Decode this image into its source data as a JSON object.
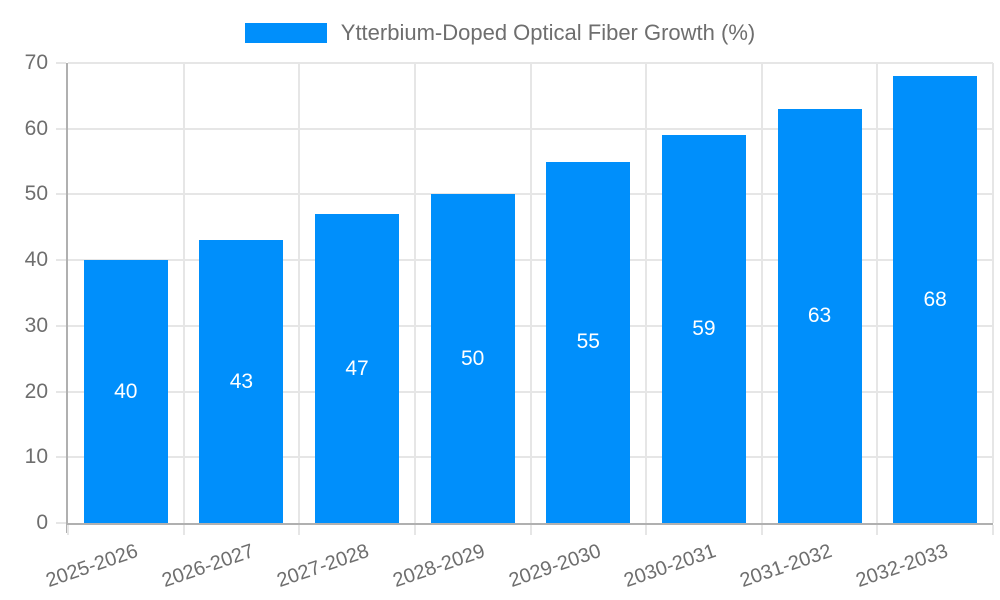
{
  "chart_data": {
    "type": "bar",
    "title": "Ytterbium-Doped Optical Fiber Growth (%)",
    "legend": {
      "position": "top",
      "label": "Ytterbium-Doped Optical Fiber Growth (%)"
    },
    "categories": [
      "2025-2026",
      "2026-2027",
      "2027-2028",
      "2028-2029",
      "2029-2030",
      "2030-2031",
      "2031-2032",
      "2032-2033"
    ],
    "series": [
      {
        "name": "Ytterbium-Doped Optical Fiber Growth (%)",
        "values": [
          40,
          43,
          47,
          50,
          55,
          59,
          63,
          68
        ]
      }
    ],
    "value_labels_shown": true,
    "xlabel": "",
    "ylabel": "",
    "ylim": [
      0,
      70
    ],
    "yticks": [
      0,
      10,
      20,
      30,
      40,
      50,
      60,
      70
    ],
    "grid": true,
    "x_label_rotation_deg": -19,
    "colors": {
      "bar": "#008FFB",
      "value_label": "#ffffff",
      "axis_text": "#6e6e6e",
      "grid_line": "#e6e6e6",
      "axis_line": "#b0b0b0",
      "background": "#ffffff"
    }
  }
}
